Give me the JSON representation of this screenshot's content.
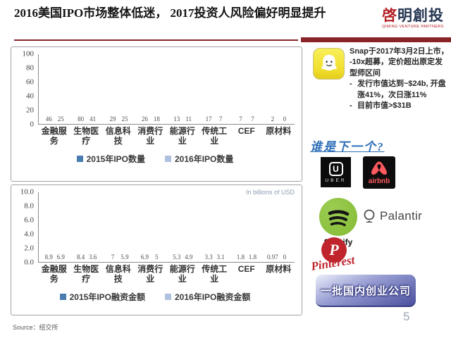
{
  "slide": {
    "title": "2016美国IPO市场整体低迷， 2017投资人风险偏好明显提升",
    "page_number": "5",
    "source": "Source：纽交所"
  },
  "brand": {
    "logo_cn_first": "啓",
    "logo_cn_rest": "明創投",
    "logo_en": "QIMING VENTURE PARTNERS"
  },
  "chart_data": [
    {
      "type": "bar",
      "title": "",
      "categories": [
        "金融服务",
        "生物医疗",
        "信息科技",
        "消费行业",
        "能源行业",
        "传统工业",
        "CEF",
        "原材料"
      ],
      "series": [
        {
          "name": "2015年IPO数量",
          "color": "#4a7cb0",
          "values": [
            46,
            80,
            29,
            26,
            13,
            17,
            7,
            2
          ]
        },
        {
          "name": "2016年IPO数量",
          "color": "#aec1de",
          "values": [
            25,
            41,
            25,
            18,
            11,
            7,
            7,
            0
          ]
        }
      ],
      "ylim": [
        0,
        100
      ],
      "yticks": [
        0,
        20,
        40,
        60,
        80,
        100
      ],
      "ytick_labels": [
        "0",
        "20",
        "40",
        "60",
        "80",
        "100"
      ],
      "annotation": "",
      "legend_position": "bottom",
      "grid": false
    },
    {
      "type": "bar",
      "title": "",
      "categories": [
        "金融服务",
        "生物医疗",
        "信息科技",
        "消费行业",
        "能源行业",
        "传统工业",
        "CEF",
        "原材料"
      ],
      "series": [
        {
          "name": "2015年IPO融资金额",
          "color": "#4a7cb0",
          "values": [
            8.9,
            8.4,
            7,
            6.9,
            5.3,
            3.3,
            1.8,
            0.97
          ]
        },
        {
          "name": "2016年IPO融资金额",
          "color": "#aec1de",
          "values": [
            6.9,
            3.6,
            5.9,
            5,
            4.9,
            3.1,
            1.8,
            0
          ]
        }
      ],
      "ylim": [
        0,
        10
      ],
      "yticks": [
        0,
        2,
        4,
        6,
        8,
        10
      ],
      "ytick_labels": [
        "0.0",
        "2.0",
        "4.0",
        "6.0",
        "8.0",
        "10.0"
      ],
      "annotation": "In billions of USD",
      "legend_position": "bottom",
      "grid": false
    }
  ],
  "snap": {
    "line1": "Snap于2017年3月2日上市，",
    "line2": "-10x超募，定价超出原定发型师区间",
    "bullet_marker": "-",
    "bullets": [
      "发行市值达到~$24b, 开盘涨41%，次日涨11%",
      "目前市值>$31B"
    ],
    "next_question": "谁是下一个?"
  },
  "companies": {
    "uber_u": "U",
    "uber": "UBER",
    "airbnb": "airbnb",
    "spotify": "Spotify",
    "palantir": "Palantir",
    "pinterest_p": "P",
    "pinterest": "Pinterest",
    "domestic_badge": "一批国内创业公司"
  }
}
